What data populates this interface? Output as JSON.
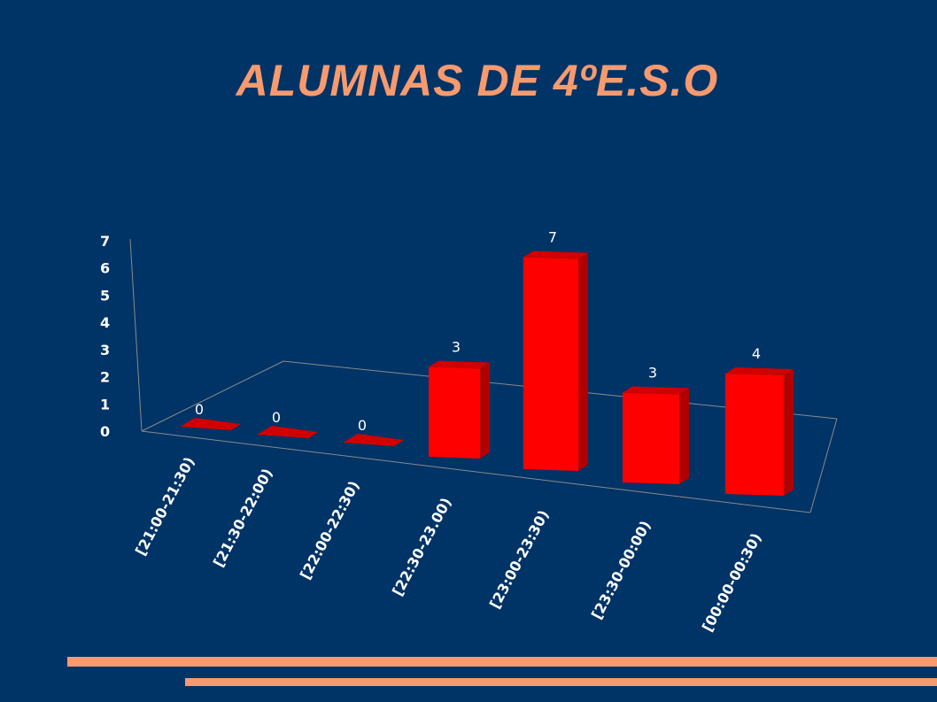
{
  "slide": {
    "title": "ALUMNAS DE 4ºE.S.O"
  },
  "colors": {
    "background": "#003366",
    "accent": "#F79A6E",
    "bar_front": "#FF0000",
    "bar_side": "#B00000",
    "bar_top": "#D10000"
  },
  "chart_data": {
    "type": "bar",
    "categories": [
      "[21:00-21:30)",
      "[21:30-22:00)",
      "[22:00-22:30)",
      "[22:30-23.00)",
      "[23:00-23:30)",
      "[23:30-00:00)",
      "[00:00-00:30)"
    ],
    "values": [
      0,
      0,
      0,
      3,
      7,
      3,
      4
    ],
    "title": "",
    "xlabel": "",
    "ylabel": "",
    "ylim": [
      0,
      7
    ],
    "yticks": [
      "0",
      "1",
      "2",
      "3",
      "4",
      "5",
      "6",
      "7"
    ],
    "data_labels": [
      "0",
      "0",
      "0",
      "3",
      "7",
      "3",
      "4"
    ],
    "grid": false,
    "legend": "none",
    "style": "3d-perspective"
  }
}
